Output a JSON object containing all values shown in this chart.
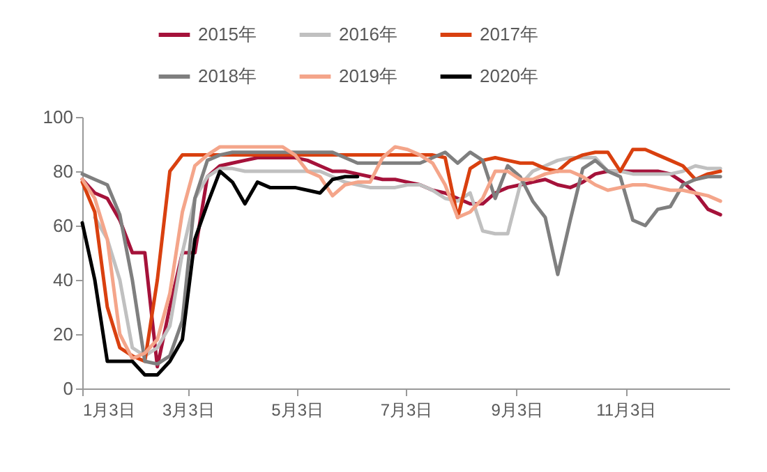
{
  "chart_data": {
    "type": "line",
    "x": [
      "--01-03",
      "--01-10",
      "--01-17",
      "--01-24",
      "--01-31",
      "--02-07",
      "--02-14",
      "--02-21",
      "--02-28",
      "--03-07",
      "--03-14",
      "--03-21",
      "--03-28",
      "--04-04",
      "--04-11",
      "--04-18",
      "--04-25",
      "--05-02",
      "--05-09",
      "--05-16",
      "--05-23",
      "--05-30",
      "--06-06",
      "--06-13",
      "--06-20",
      "--06-27",
      "--07-04",
      "--07-11",
      "--07-18",
      "--07-25",
      "--08-01",
      "--08-08",
      "--08-15",
      "--08-22",
      "--08-29",
      "--09-05",
      "--09-12",
      "--09-19",
      "--09-26",
      "--10-03",
      "--10-10",
      "--10-17",
      "--10-24",
      "--10-31",
      "--11-07",
      "--11-14",
      "--11-21",
      "--11-28",
      "--12-05",
      "--12-12",
      "--12-19",
      "--12-26"
    ],
    "series": [
      {
        "name": "2015年",
        "color": "#a5123a",
        "values": [
          77,
          72,
          70,
          62,
          50,
          50,
          8,
          30,
          50,
          50,
          78,
          82,
          83,
          84,
          85,
          85,
          85,
          85,
          84,
          82,
          80,
          80,
          79,
          78,
          77,
          77,
          76,
          75,
          73,
          72,
          70,
          68,
          68,
          72,
          74,
          75,
          76,
          77,
          75,
          74,
          76,
          79,
          80,
          80,
          80,
          80,
          80,
          79,
          76,
          72,
          66,
          64
        ]
      },
      {
        "name": "2016年",
        "color": "#c0c0c0",
        "values": [
          null,
          63,
          55,
          40,
          15,
          12,
          15,
          23,
          50,
          70,
          78,
          81,
          81,
          80,
          80,
          80,
          80,
          80,
          80,
          80,
          78,
          76,
          75,
          74,
          74,
          74,
          75,
          75,
          73,
          70,
          69,
          72,
          58,
          57,
          57,
          75,
          80,
          82,
          84,
          85,
          85,
          85,
          80,
          80,
          79,
          79,
          79,
          79,
          80,
          82,
          81,
          81
        ]
      },
      {
        "name": "2017年",
        "color": "#d9400f",
        "values": [
          76,
          65,
          30,
          15,
          12,
          10,
          40,
          80,
          86,
          86,
          86,
          86,
          86,
          86,
          86,
          86,
          86,
          86,
          86,
          86,
          86,
          86,
          86,
          86,
          86,
          86,
          86,
          86,
          86,
          85,
          63,
          81,
          84,
          85,
          84,
          83,
          83,
          81,
          80,
          84,
          86,
          87,
          87,
          80,
          88,
          88,
          86,
          84,
          82,
          77,
          79,
          80
        ]
      },
      {
        "name": "2018年",
        "color": "#7f7f7f",
        "values": [
          79,
          77,
          75,
          64,
          40,
          10,
          9,
          12,
          25,
          70,
          84,
          86,
          87,
          87,
          87,
          87,
          87,
          87,
          87,
          87,
          87,
          85,
          83,
          83,
          83,
          83,
          83,
          83,
          85,
          87,
          83,
          87,
          84,
          70,
          82,
          78,
          69,
          63,
          42,
          62,
          81,
          84,
          80,
          78,
          62,
          60,
          66,
          67,
          75,
          77,
          78,
          78
        ]
      },
      {
        "name": "2019年",
        "color": "#f4a58a",
        "values": [
          77,
          70,
          55,
          20,
          11,
          13,
          18,
          35,
          65,
          82,
          86,
          89,
          89,
          89,
          89,
          89,
          89,
          86,
          80,
          78,
          71,
          75,
          76,
          76,
          85,
          89,
          88,
          86,
          83,
          75,
          63,
          65,
          70,
          80,
          80,
          77,
          77,
          79,
          80,
          80,
          78,
          75,
          73,
          74,
          75,
          75,
          74,
          73,
          73,
          72,
          71,
          69
        ]
      },
      {
        "name": "2020年",
        "color": "#000000",
        "values": [
          61,
          40,
          10,
          10,
          10,
          5,
          5,
          10,
          18,
          55,
          68,
          80,
          76,
          68,
          76,
          74,
          74,
          74,
          73,
          72,
          77,
          78,
          78,
          null,
          null,
          null,
          null,
          null,
          null,
          null,
          null,
          null,
          null,
          null,
          null,
          null,
          null,
          null,
          null,
          null,
          null,
          null,
          null,
          null,
          null,
          null,
          null,
          null,
          null,
          null,
          null,
          null
        ]
      }
    ],
    "xlim": [
      "--01-03",
      "--12-31"
    ],
    "xticks": [
      {
        "value": "--01-03",
        "label": "1月3日"
      },
      {
        "value": "--03-03",
        "label": "3月3日"
      },
      {
        "value": "--05-03",
        "label": "5月3日"
      },
      {
        "value": "--07-03",
        "label": "7月3日"
      },
      {
        "value": "--09-03",
        "label": "9月3日"
      },
      {
        "value": "--11-03",
        "label": "11月3日"
      }
    ],
    "ylim": [
      0,
      100
    ],
    "yticks": [
      0,
      20,
      40,
      60,
      80,
      100
    ],
    "legend": "top",
    "marker": "none",
    "line_style": "solid"
  }
}
